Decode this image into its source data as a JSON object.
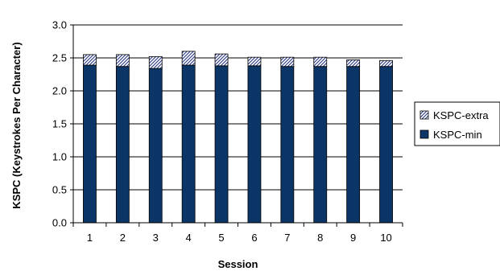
{
  "chart_data": {
    "type": "bar",
    "stacked": true,
    "title": "",
    "xlabel": "Session",
    "ylabel": "KSPC (Keystrokes Per Character)",
    "ylim": [
      0,
      3.0
    ],
    "yticks": [
      "0.0",
      "0.5",
      "1.0",
      "1.5",
      "2.0",
      "2.5",
      "3.0"
    ],
    "categories": [
      "1",
      "2",
      "3",
      "4",
      "5",
      "6",
      "7",
      "8",
      "9",
      "10"
    ],
    "series": [
      {
        "name": "KSPC-min",
        "color": "#0b3566",
        "pattern": "solid",
        "values": [
          2.39,
          2.37,
          2.34,
          2.39,
          2.38,
          2.38,
          2.37,
          2.37,
          2.37,
          2.37
        ]
      },
      {
        "name": "KSPC-extra",
        "color": "#1f2f7a",
        "pattern": "diagonal-hatch",
        "values": [
          0.16,
          0.18,
          0.18,
          0.21,
          0.18,
          0.13,
          0.14,
          0.14,
          0.1,
          0.09
        ]
      }
    ],
    "legend_order": [
      "KSPC-extra",
      "KSPC-min"
    ],
    "legend_position": "right",
    "grid": true
  }
}
